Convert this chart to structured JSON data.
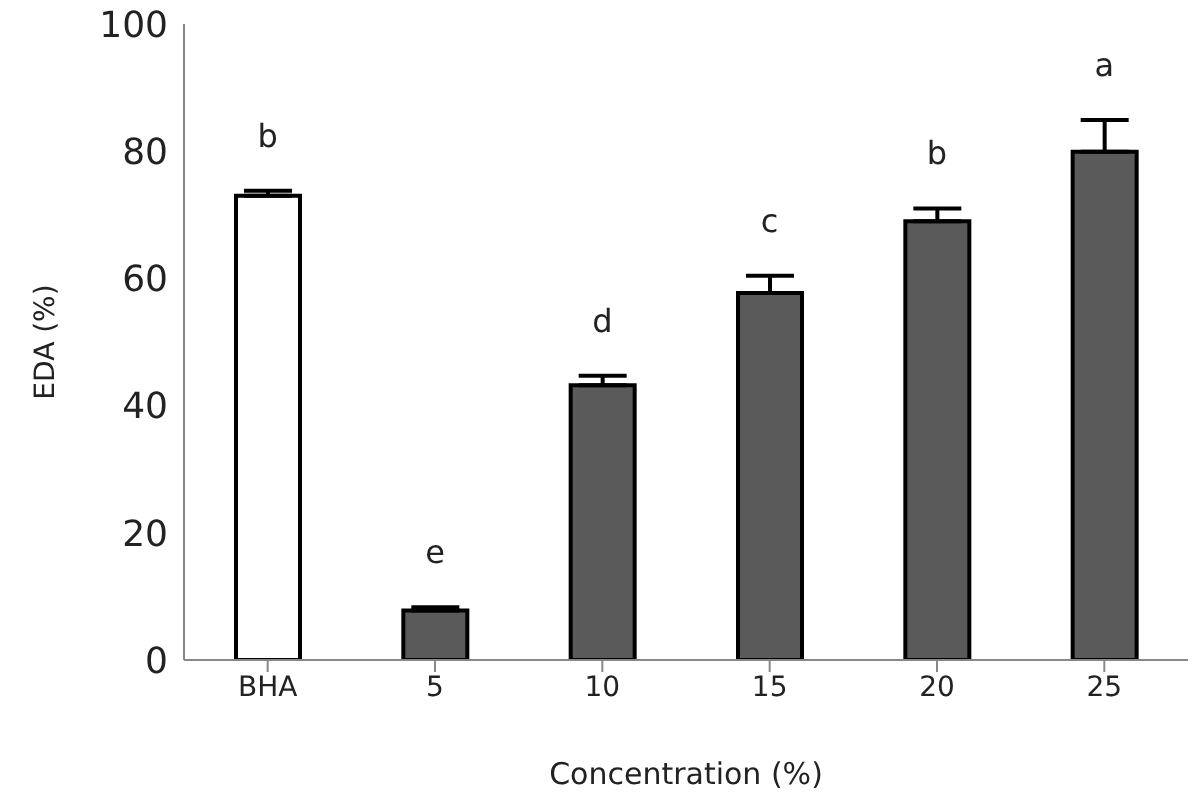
{
  "chart_data": {
    "type": "bar",
    "xlabel": "Concentration (%)",
    "ylabel": "EDA (%)",
    "categories": [
      "BHA",
      "5",
      "10",
      "15",
      "20",
      "25"
    ],
    "values": [
      73,
      7.8,
      43.2,
      57.7,
      69,
      79.9
    ],
    "errors": [
      0.8,
      0.5,
      1.5,
      2.7,
      2,
      5
    ],
    "colors": [
      "#ffffff",
      "#5a5a5a",
      "#5a5a5a",
      "#5a5a5a",
      "#5a5a5a",
      "#5a5a5a"
    ],
    "ylim": [
      0,
      100
    ],
    "yticks": [
      0,
      20,
      40,
      60,
      80,
      100
    ],
    "grid": false,
    "annotations": [
      "b",
      "e",
      "d",
      "c",
      "b",
      "a"
    ]
  }
}
